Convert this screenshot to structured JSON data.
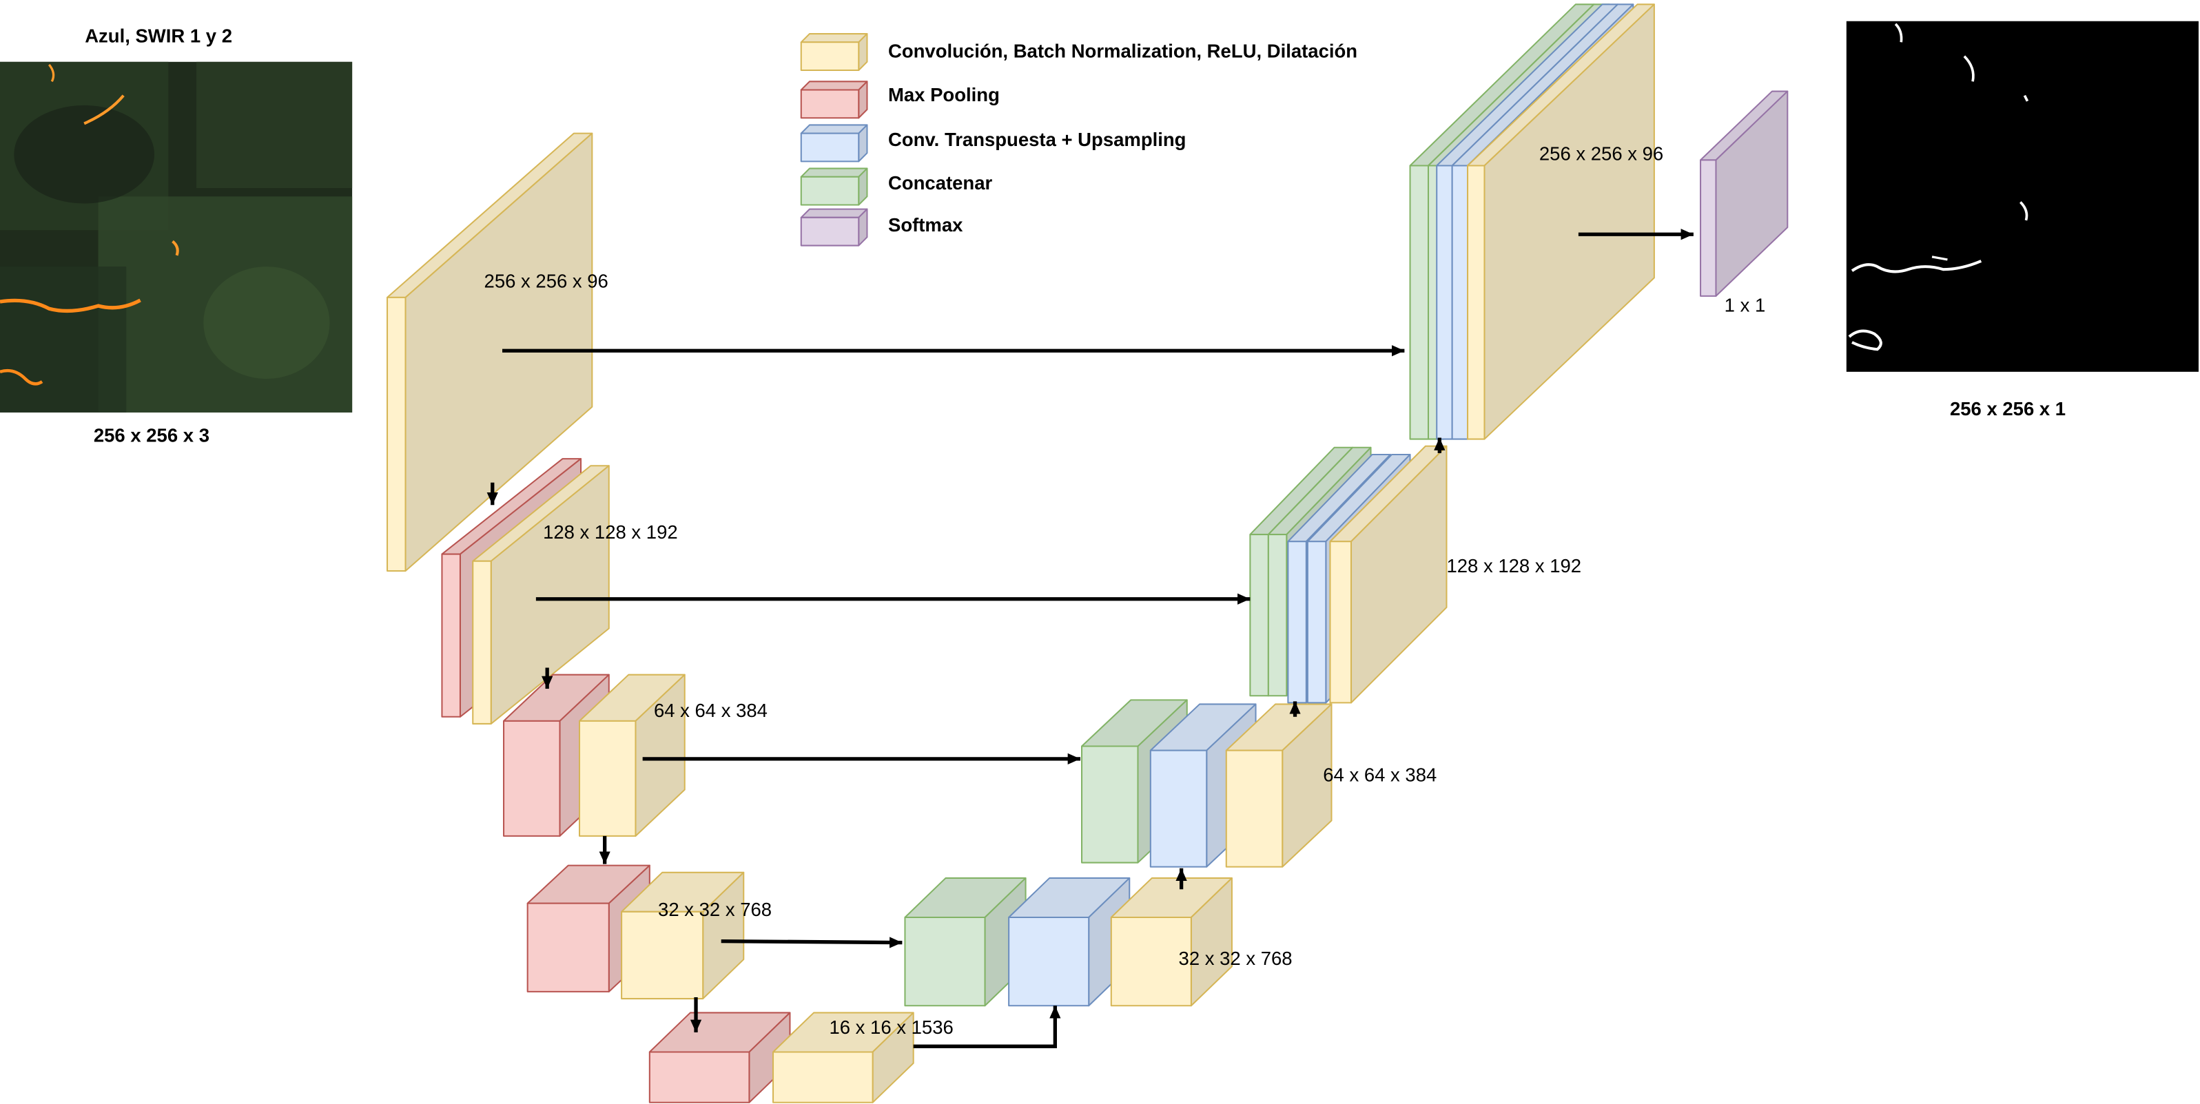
{
  "colors": {
    "conv": {
      "fill": "#fff2cc",
      "stroke": "#d6b656"
    },
    "pool": {
      "fill": "#f8cecc",
      "stroke": "#b85450"
    },
    "up": {
      "fill": "#dae8fc",
      "stroke": "#6c8ebf"
    },
    "cat": {
      "fill": "#d5e8d4",
      "stroke": "#82b366"
    },
    "soft": {
      "fill": "#e1d5e7",
      "stroke": "#9673a6"
    }
  },
  "legend": {
    "conv": "Convolución, Batch Normalization, ReLU, Dilatación",
    "pool": "Max Pooling",
    "up": "Conv. Transpuesta + Upsampling",
    "cat": "Concatenar",
    "soft": "Softmax"
  },
  "input": {
    "title": "Azul, SWIR 1 y 2",
    "size": "256 x 256 x 3",
    "image_content": "dark green satellite image with orange fire-front lines"
  },
  "output": {
    "size": "256 x 256 x 1",
    "image_content": "black segmentation mask with thin white fire lines"
  },
  "encoder": {
    "l1": "256 x 256 x 96",
    "l2": "128 x 128 x 192",
    "l3": "64 x 64 x 384",
    "l4": "32 x 32 x 768",
    "bottleneck": "16 x 16 x 1536"
  },
  "decoder": {
    "d4": "32 x 32 x 768",
    "d3": "64 x 64 x 384",
    "d2": "128 x 128 x 192",
    "d1": "256 x 256 x 96",
    "softmax": "1 x 1"
  }
}
